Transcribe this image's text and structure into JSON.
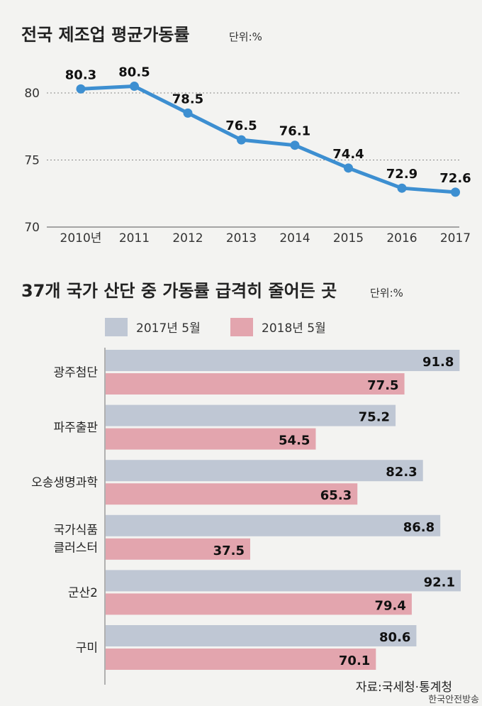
{
  "chart_data": [
    {
      "type": "line",
      "title": "전국 제조업 평균가동률",
      "unit_label": "단위:%",
      "categories": [
        "2010년",
        "2011",
        "2012",
        "2013",
        "2014",
        "2015",
        "2016",
        "2017"
      ],
      "values": [
        80.3,
        80.5,
        78.5,
        76.5,
        76.1,
        74.4,
        72.9,
        72.6
      ],
      "value_labels": [
        "80.3",
        "80.5",
        "78.5",
        "76.5",
        "76.1",
        "74.4",
        "72.9",
        "72.6"
      ],
      "yticks": [
        "80",
        "75",
        "70"
      ],
      "ylim": [
        70,
        82.5
      ],
      "grid": true,
      "line_color": "#3d8fd1"
    },
    {
      "type": "bar",
      "orientation": "horizontal",
      "title": "37개 국가 산단 중 가동률 급격히 줄어든 곳",
      "unit_label": "단위:%",
      "categories": [
        "광주첨단",
        "파주출판",
        "오송생명과학",
        "국가식품 클러스터",
        "군산2",
        "구미"
      ],
      "series": [
        {
          "name": "2017년 5월",
          "values": [
            91.8,
            75.2,
            82.3,
            86.8,
            92.1,
            80.6
          ],
          "value_labels": [
            "91.8",
            "75.2",
            "82.3",
            "86.8",
            "92.1",
            "80.6"
          ],
          "color": "#bfc7d4"
        },
        {
          "name": "2018년 5월",
          "values": [
            77.5,
            54.5,
            65.3,
            37.5,
            79.4,
            70.1
          ],
          "value_labels": [
            "77.5",
            "54.5",
            "65.3",
            "37.5",
            "79.4",
            "70.1"
          ],
          "color": "#e3a5ae"
        }
      ],
      "xlim": [
        0,
        92.1
      ],
      "legend_position": "top-left",
      "source": "자료:국세청·통계청"
    }
  ],
  "watermark": "한국안전방송"
}
